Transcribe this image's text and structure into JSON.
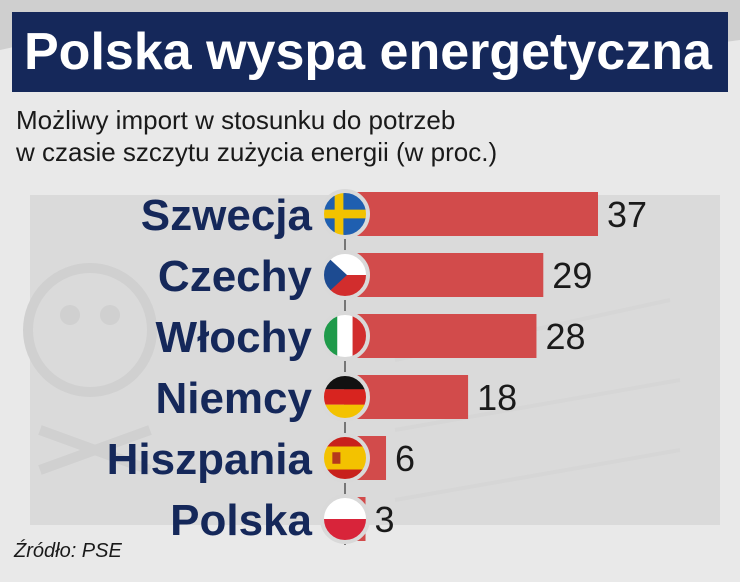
{
  "title": "Polska wyspa energetyczna",
  "subtitle_lines": [
    "Możliwy import w stosunku do potrzeb",
    "w czasie szczytu zużycia energii (w proc.)"
  ],
  "source": "Źródło: PSE",
  "colors": {
    "title_band": "#15285a",
    "bar": "#d24b4b",
    "label": "#15285a",
    "value": "#1a1a1a"
  },
  "chart_data": {
    "type": "bar",
    "orientation": "horizontal",
    "title": "Polska wyspa energetyczna",
    "subtitle": "Możliwy import w stosunku do potrzeb w czasie szczytu zużycia energii (w proc.)",
    "categories": [
      "Szwecja",
      "Czechy",
      "Włochy",
      "Niemcy",
      "Hiszpania",
      "Polska"
    ],
    "values": [
      37,
      29,
      28,
      18,
      6,
      3
    ],
    "flags": [
      "sweden-flag",
      "czech-flag",
      "italy-flag",
      "germany-flag",
      "spain-flag",
      "poland-flag"
    ],
    "xlim": [
      0,
      37
    ],
    "grid": false,
    "legend": "none"
  }
}
